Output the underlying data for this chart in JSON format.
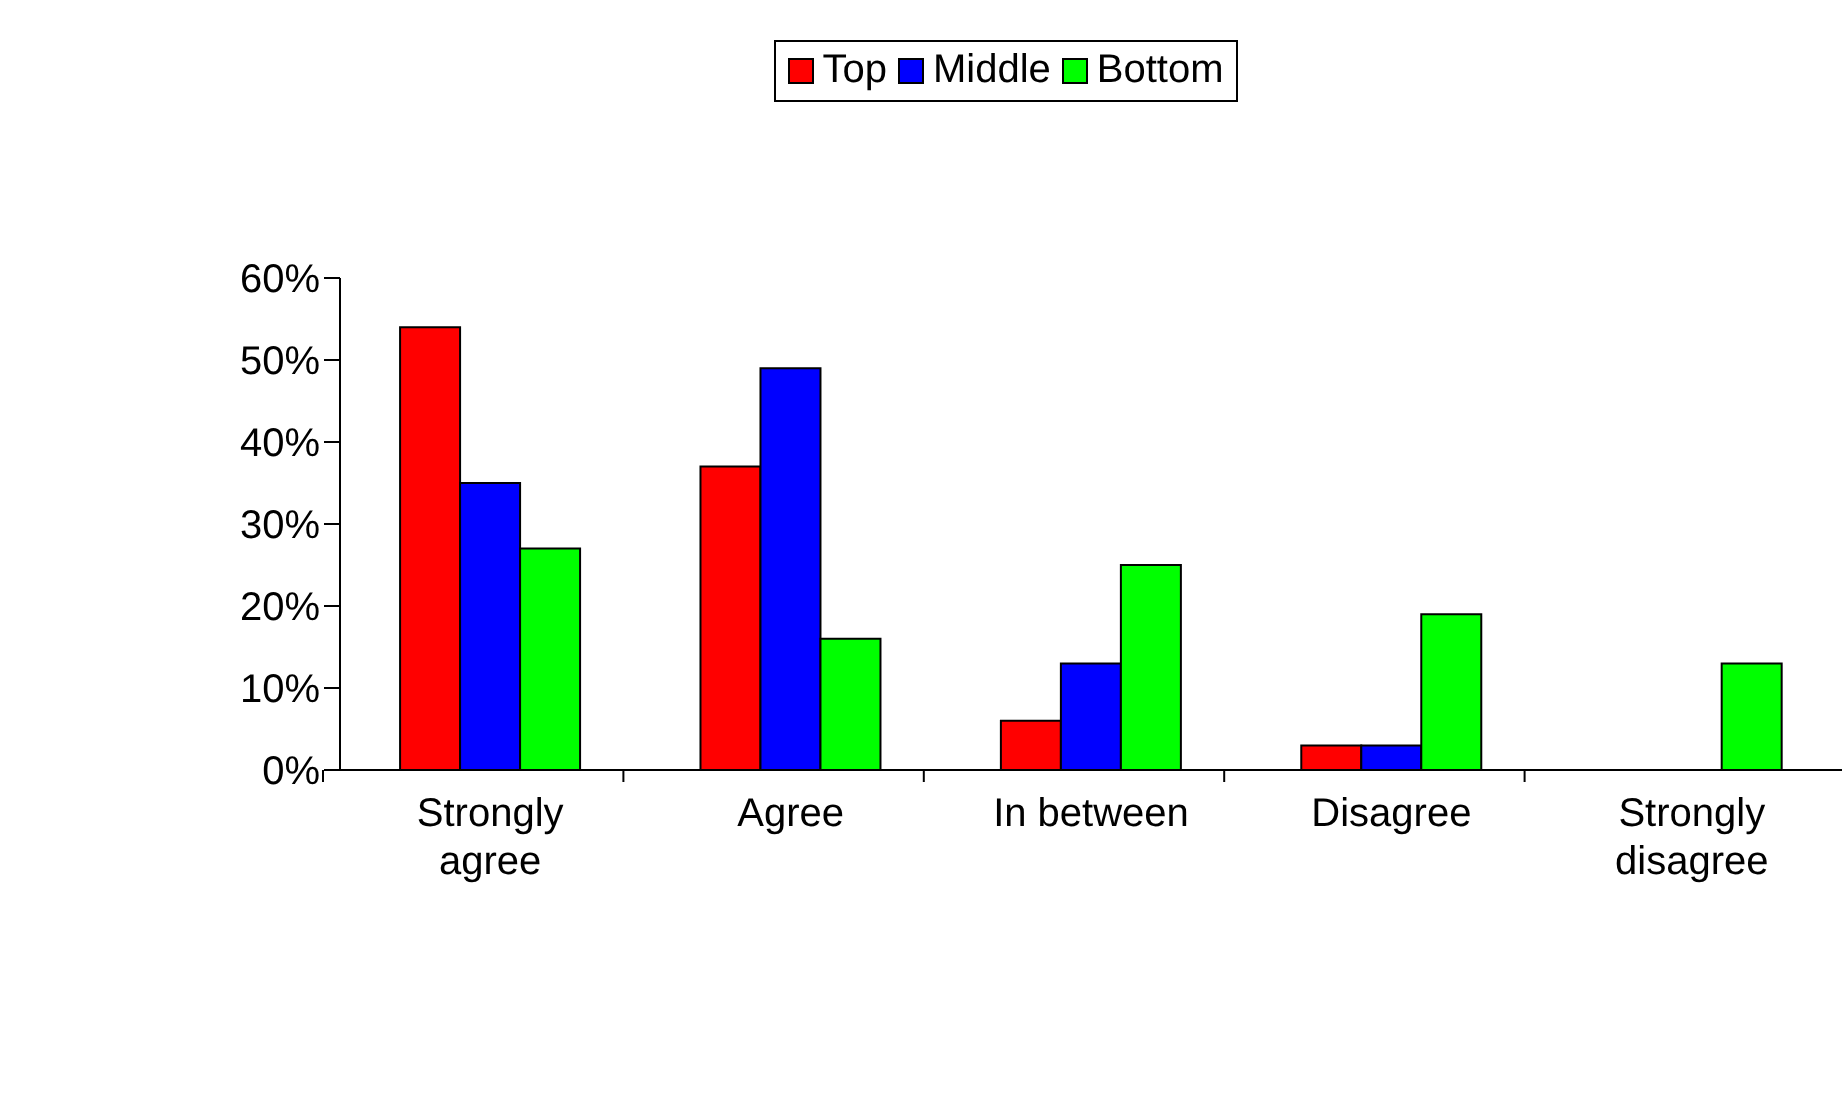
{
  "chart_data": {
    "type": "bar",
    "categories": [
      "Strongly agree",
      "Agree",
      "In between",
      "Disagree",
      "Strongly disagree"
    ],
    "series": [
      {
        "name": "Top",
        "color": "#ff0000",
        "values": [
          54,
          37,
          6,
          3,
          0
        ]
      },
      {
        "name": "Middle",
        "color": "#0000ff",
        "values": [
          35,
          49,
          13,
          3,
          0
        ]
      },
      {
        "name": "Bottom",
        "color": "#00ff00",
        "values": [
          27,
          16,
          25,
          19,
          13
        ]
      }
    ],
    "ylim": [
      0,
      60
    ],
    "yticks": [
      {
        "value": 0,
        "label": "0%"
      },
      {
        "value": 10,
        "label": "10%"
      },
      {
        "value": 20,
        "label": "20%"
      },
      {
        "value": 30,
        "label": "30%"
      },
      {
        "value": 40,
        "label": "40%"
      },
      {
        "value": 50,
        "label": "50%"
      },
      {
        "value": 60,
        "label": "60%"
      }
    ],
    "grid": false,
    "legend": "top"
  }
}
